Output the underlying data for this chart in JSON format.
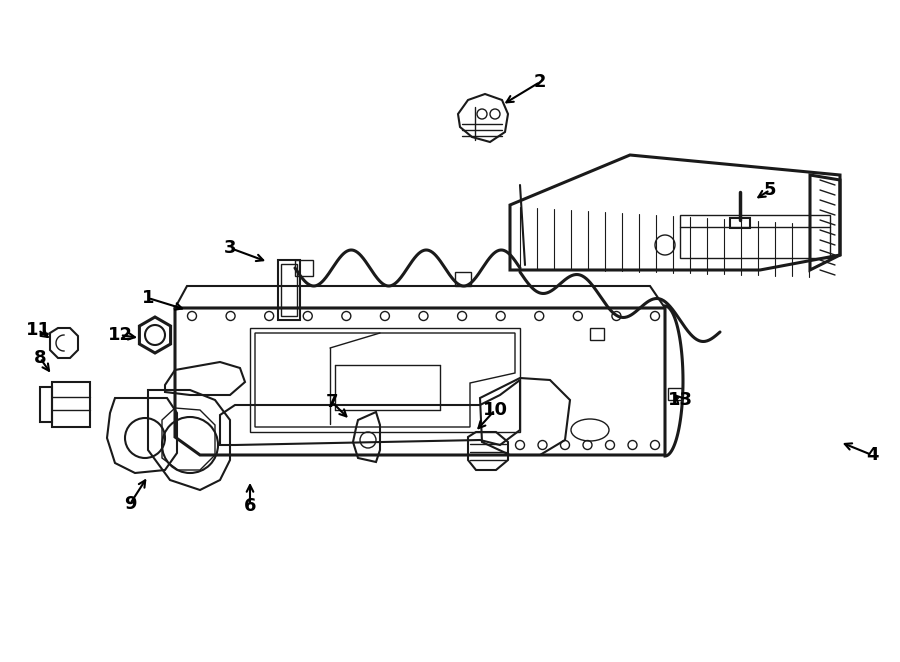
{
  "bg_color": "#ffffff",
  "line_color": "#1a1a1a",
  "fig_width": 9.0,
  "fig_height": 6.62,
  "dpi": 100,
  "label_positions": {
    "1": [
      0.155,
      0.575,
      0.215,
      0.57
    ],
    "2": [
      0.595,
      0.845,
      0.555,
      0.835
    ],
    "3": [
      0.248,
      0.635,
      0.272,
      0.615
    ],
    "4": [
      0.87,
      0.345,
      0.868,
      0.41
    ],
    "5": [
      0.852,
      0.72,
      0.822,
      0.712
    ],
    "6": [
      0.268,
      0.148,
      0.268,
      0.182
    ],
    "7": [
      0.352,
      0.385,
      0.368,
      0.405
    ],
    "8": [
      0.058,
      0.262,
      0.085,
      0.258
    ],
    "9": [
      0.148,
      0.178,
      0.148,
      0.21
    ],
    "10": [
      0.535,
      0.228,
      0.502,
      0.238
    ],
    "11": [
      0.052,
      0.352,
      0.062,
      0.368
    ],
    "12": [
      0.135,
      0.358,
      0.158,
      0.362
    ],
    "13": [
      0.728,
      0.405,
      0.7,
      0.422
    ]
  }
}
